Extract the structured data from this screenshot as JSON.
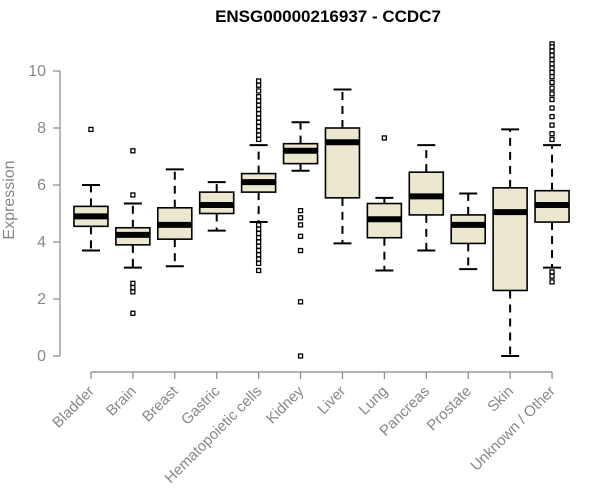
{
  "chart_data": {
    "type": "box",
    "title": "ENSG00000216937 - CCDC7",
    "xlabel": "",
    "ylabel": "Expression",
    "ylim": [
      0,
      10.5
    ],
    "yticks": [
      0,
      2,
      4,
      6,
      8,
      10
    ],
    "grid": false,
    "box_fill": "#ece7cf",
    "categories": [
      "Bladder",
      "Brain",
      "Breast",
      "Gastric",
      "Hematopoietic cells",
      "Kidney",
      "Liver",
      "Lung",
      "Pancreas",
      "Prostate",
      "Skin",
      "Unknown / Other"
    ],
    "boxes": [
      {
        "category": "Bladder",
        "whisker_low": 3.7,
        "q1": 4.55,
        "median": 4.9,
        "q3": 5.25,
        "whisker_high": 6.0,
        "outliers": [
          7.95
        ]
      },
      {
        "category": "Brain",
        "whisker_low": 3.1,
        "q1": 3.9,
        "median": 4.25,
        "q3": 4.5,
        "whisker_high": 5.35,
        "outliers": [
          7.2,
          5.65,
          2.55,
          2.4,
          2.25,
          1.5
        ]
      },
      {
        "category": "Breast",
        "whisker_low": 3.15,
        "q1": 4.1,
        "median": 4.6,
        "q3": 5.2,
        "whisker_high": 6.55,
        "outliers": []
      },
      {
        "category": "Gastric",
        "whisker_low": 4.4,
        "q1": 5.0,
        "median": 5.3,
        "q3": 5.75,
        "whisker_high": 6.1,
        "outliers": []
      },
      {
        "category": "Hematopoietic cells",
        "whisker_low": 4.7,
        "q1": 5.75,
        "median": 6.1,
        "q3": 6.4,
        "whisker_high": 7.4,
        "outliers": [
          9.65,
          9.5,
          9.3,
          9.1,
          8.95,
          8.8,
          8.65,
          8.5,
          8.35,
          8.2,
          8.05,
          7.9,
          7.75,
          7.6,
          4.6,
          4.45,
          4.3,
          4.15,
          4.0,
          3.85,
          3.7,
          3.55,
          3.4,
          3.25,
          3.0
        ]
      },
      {
        "category": "Kidney",
        "whisker_low": 6.5,
        "q1": 6.75,
        "median": 7.2,
        "q3": 7.45,
        "whisker_high": 8.2,
        "outliers": [
          5.1,
          4.85,
          4.6,
          4.2,
          3.7,
          1.9,
          0.0
        ]
      },
      {
        "category": "Liver",
        "whisker_low": 3.95,
        "q1": 5.55,
        "median": 7.5,
        "q3": 8.0,
        "whisker_high": 9.35,
        "outliers": []
      },
      {
        "category": "Lung",
        "whisker_low": 3.0,
        "q1": 4.15,
        "median": 4.8,
        "q3": 5.35,
        "whisker_high": 5.55,
        "outliers": [
          7.65
        ]
      },
      {
        "category": "Pancreas",
        "whisker_low": 3.7,
        "q1": 4.95,
        "median": 5.6,
        "q3": 6.45,
        "whisker_high": 7.4,
        "outliers": []
      },
      {
        "category": "Prostate",
        "whisker_low": 3.05,
        "q1": 3.95,
        "median": 4.6,
        "q3": 4.95,
        "whisker_high": 5.7,
        "outliers": []
      },
      {
        "category": "Skin",
        "whisker_low": 0.0,
        "q1": 2.3,
        "median": 5.05,
        "q3": 5.9,
        "whisker_high": 7.95,
        "outliers": []
      },
      {
        "category": "Unknown / Other",
        "whisker_low": 3.1,
        "q1": 4.7,
        "median": 5.3,
        "q3": 5.8,
        "whisker_high": 7.4,
        "outliers": [
          10.95,
          10.85,
          10.7,
          10.55,
          10.4,
          10.25,
          10.1,
          9.95,
          9.8,
          9.6,
          9.4,
          9.2,
          9.0,
          8.7,
          8.4,
          8.1,
          7.8,
          7.6,
          2.95,
          2.8,
          2.6
        ]
      }
    ]
  }
}
